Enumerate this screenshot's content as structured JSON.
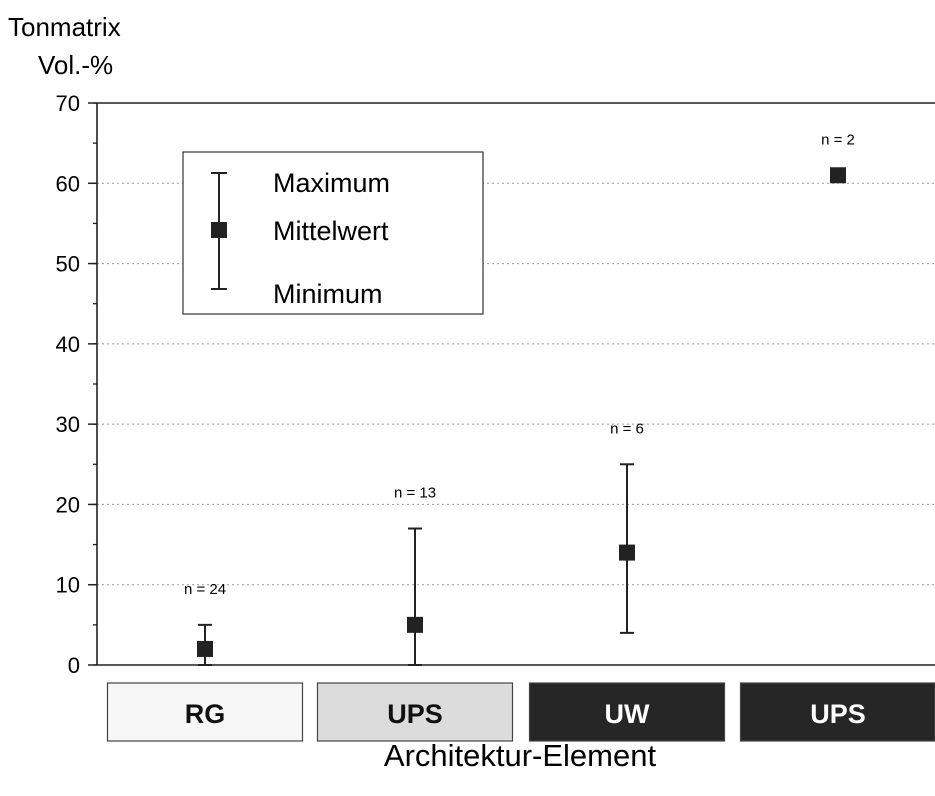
{
  "chart_data": {
    "type": "scatter",
    "ylabel_line1": "Tonmatrix",
    "ylabel_line2": "Vol.-%",
    "xlabel": "Architektur-Element",
    "ylim": [
      0,
      70
    ],
    "yticks": [
      0,
      10,
      20,
      30,
      40,
      50,
      60,
      70
    ],
    "grid": true,
    "legend": {
      "position": "top-left",
      "entries": [
        "Maximum",
        "Mittelwert",
        "Minimum"
      ]
    },
    "categories": [
      {
        "label": "RG",
        "mean": 2,
        "min": 0,
        "max": 5,
        "n_label": "n = 24",
        "style": "white"
      },
      {
        "label": "UPS",
        "mean": 5,
        "min": 0,
        "max": 17,
        "n_label": "n = 13",
        "style": "light-gray"
      },
      {
        "label": "UW",
        "mean": 14,
        "min": 4,
        "max": 25,
        "n_label": "n = 6",
        "style": "dark"
      },
      {
        "label": "UPS",
        "mean": 61,
        "min": null,
        "max": null,
        "n_label": "n = 2",
        "style": "dark"
      }
    ],
    "colors": {
      "marker": "#222222",
      "grid": "#9a9a9a",
      "box_white": "#f7f7f7",
      "box_light": "#dcdcdc",
      "box_dark": "#262626"
    }
  }
}
